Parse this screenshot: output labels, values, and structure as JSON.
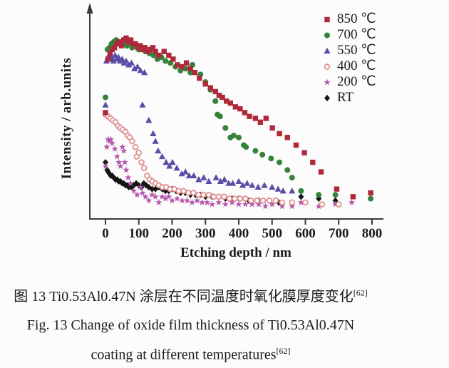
{
  "figure": {
    "caption_zh": "图 13  Ti0.53Al0.47N 涂层在不同温度时氧化膜厚度变化",
    "caption_zh_sup": "[62]",
    "caption_en_line1": "Fig. 13    Change of oxide film thickness of Ti0.53Al0.47N",
    "caption_en_line2": "coating at different temperatures",
    "caption_en_sup": "[62]"
  },
  "colors": {
    "axis": "#3a3a3a",
    "text": "#1b1b1b",
    "background": "#fcfcfc"
  },
  "chart_data": {
    "type": "scatter",
    "title": "",
    "xlabel": "Etching depth / nm",
    "ylabel": "Intensity / arb.units",
    "xlim": [
      0,
      800
    ],
    "x_ticks": [
      0,
      100,
      200,
      300,
      400,
      500,
      600,
      700,
      800
    ],
    "ylim": [
      0,
      100
    ],
    "y_scale_note": "y axis unlabeled (arbitrary units); values estimated on 0-100 scale",
    "grid": false,
    "legend_position": "top-right",
    "series": [
      {
        "name": "850 ℃",
        "marker": "square",
        "color": "#ae2a3a",
        "points": [
          [
            0,
            56
          ],
          [
            8,
            84
          ],
          [
            14,
            87
          ],
          [
            20,
            89
          ],
          [
            27,
            90
          ],
          [
            34,
            92
          ],
          [
            41,
            93
          ],
          [
            48,
            91
          ],
          [
            55,
            94
          ],
          [
            62,
            95
          ],
          [
            69,
            93
          ],
          [
            76,
            94
          ],
          [
            83,
            92
          ],
          [
            90,
            92
          ],
          [
            97,
            90
          ],
          [
            104,
            91
          ],
          [
            111,
            89
          ],
          [
            118,
            90
          ],
          [
            126,
            88
          ],
          [
            134,
            89
          ],
          [
            142,
            90
          ],
          [
            150,
            88
          ],
          [
            160,
            86
          ],
          [
            176,
            88
          ],
          [
            190,
            86
          ],
          [
            203,
            84
          ],
          [
            216,
            81
          ],
          [
            229,
            80
          ],
          [
            243,
            82
          ],
          [
            255,
            79
          ],
          [
            268,
            77
          ],
          [
            282,
            74
          ],
          [
            300,
            71
          ],
          [
            315,
            69
          ],
          [
            330,
            67
          ],
          [
            341,
            65
          ],
          [
            351,
            64
          ],
          [
            363,
            62
          ],
          [
            375,
            61
          ],
          [
            390,
            59
          ],
          [
            404,
            58
          ],
          [
            418,
            56
          ],
          [
            432,
            54
          ],
          [
            450,
            53
          ],
          [
            465,
            51
          ],
          [
            482,
            53
          ],
          [
            501,
            48
          ],
          [
            522,
            45
          ],
          [
            546,
            43
          ],
          [
            572,
            39
          ],
          [
            597,
            35
          ],
          [
            622,
            30
          ],
          [
            647,
            25
          ],
          [
            694,
            16
          ],
          [
            743,
            12
          ],
          [
            796,
            14
          ]
        ]
      },
      {
        "name": "700 ℃",
        "marker": "circle",
        "color": "#37823b",
        "points": [
          [
            0,
            64
          ],
          [
            6,
            89
          ],
          [
            12,
            90
          ],
          [
            18,
            92
          ],
          [
            25,
            93
          ],
          [
            32,
            94
          ],
          [
            40,
            93
          ],
          [
            48,
            92
          ],
          [
            56,
            93
          ],
          [
            64,
            91
          ],
          [
            72,
            92
          ],
          [
            80,
            90
          ],
          [
            90,
            91
          ],
          [
            100,
            89
          ],
          [
            110,
            90
          ],
          [
            120,
            88
          ],
          [
            132,
            87
          ],
          [
            144,
            86
          ],
          [
            156,
            84
          ],
          [
            168,
            85
          ],
          [
            180,
            83
          ],
          [
            195,
            82
          ],
          [
            210,
            80
          ],
          [
            225,
            78
          ],
          [
            240,
            79
          ],
          [
            255,
            77
          ],
          [
            261,
            81
          ],
          [
            285,
            76
          ],
          [
            300,
            72
          ],
          [
            315,
            68
          ],
          [
            330,
            62
          ],
          [
            336,
            55
          ],
          [
            344,
            54
          ],
          [
            360,
            48
          ],
          [
            375,
            43
          ],
          [
            385,
            44
          ],
          [
            400,
            43
          ],
          [
            415,
            39
          ],
          [
            422,
            38
          ],
          [
            450,
            36
          ],
          [
            471,
            34
          ],
          [
            497,
            32
          ],
          [
            522,
            30
          ],
          [
            546,
            26
          ],
          [
            560,
            22
          ],
          [
            587,
            15
          ],
          [
            640,
            13
          ],
          [
            690,
            13
          ],
          [
            796,
            11
          ]
        ]
      },
      {
        "name": "550 ℃",
        "marker": "triangle",
        "color": "#5a4da6",
        "points": [
          [
            0,
            60
          ],
          [
            3,
            83
          ],
          [
            7,
            85
          ],
          [
            11,
            86
          ],
          [
            15,
            84
          ],
          [
            19,
            85
          ],
          [
            24,
            83
          ],
          [
            29,
            86
          ],
          [
            34,
            84
          ],
          [
            39,
            85
          ],
          [
            44,
            83
          ],
          [
            50,
            84
          ],
          [
            56,
            82
          ],
          [
            62,
            83
          ],
          [
            70,
            81
          ],
          [
            78,
            82
          ],
          [
            87,
            79
          ],
          [
            96,
            80
          ],
          [
            105,
            78
          ],
          [
            111,
            60
          ],
          [
            117,
            77
          ],
          [
            130,
            52
          ],
          [
            143,
            45
          ],
          [
            150,
            41
          ],
          [
            158,
            36
          ],
          [
            170,
            33
          ],
          [
            182,
            30
          ],
          [
            192,
            28
          ],
          [
            201,
            30
          ],
          [
            214,
            27
          ],
          [
            229,
            24
          ],
          [
            240,
            25
          ],
          [
            251,
            23
          ],
          [
            265,
            23
          ],
          [
            280,
            21
          ],
          [
            295,
            22
          ],
          [
            310,
            20
          ],
          [
            332,
            22
          ],
          [
            345,
            20
          ],
          [
            357,
            21
          ],
          [
            370,
            19
          ],
          [
            382,
            19
          ],
          [
            400,
            20
          ],
          [
            412,
            18
          ],
          [
            425,
            19
          ],
          [
            440,
            18
          ],
          [
            458,
            17
          ],
          [
            477,
            18
          ],
          [
            500,
            17
          ],
          [
            518,
            16
          ],
          [
            533,
            15
          ],
          [
            560,
            15
          ]
        ]
      },
      {
        "name": "400 ℃",
        "marker": "circle-open",
        "color": "#dd8f8f",
        "points": [
          [
            0,
            55
          ],
          [
            8,
            54
          ],
          [
            15,
            53
          ],
          [
            22,
            52
          ],
          [
            30,
            51
          ],
          [
            38,
            49
          ],
          [
            45,
            48
          ],
          [
            52,
            47
          ],
          [
            60,
            46
          ],
          [
            67,
            44
          ],
          [
            73,
            43
          ],
          [
            80,
            41
          ],
          [
            90,
            38
          ],
          [
            94,
            33
          ],
          [
            100,
            35
          ],
          [
            108,
            30
          ],
          [
            116,
            27
          ],
          [
            125,
            23
          ],
          [
            133,
            21
          ],
          [
            141,
            20
          ],
          [
            150,
            19
          ],
          [
            160,
            18
          ],
          [
            171,
            17
          ],
          [
            182,
            17
          ],
          [
            194,
            16
          ],
          [
            207,
            16
          ],
          [
            220,
            15
          ],
          [
            234,
            15
          ],
          [
            249,
            14
          ],
          [
            264,
            14
          ],
          [
            279,
            13
          ],
          [
            294,
            13
          ],
          [
            310,
            13
          ],
          [
            325,
            12
          ],
          [
            340,
            12
          ],
          [
            356,
            12
          ],
          [
            372,
            11
          ],
          [
            388,
            11
          ],
          [
            404,
            11
          ],
          [
            420,
            11
          ],
          [
            437,
            10
          ],
          [
            455,
            10
          ],
          [
            473,
            10
          ],
          [
            492,
            10
          ],
          [
            511,
            10
          ],
          [
            530,
            9
          ],
          [
            560,
            9
          ],
          [
            600,
            9
          ],
          [
            650,
            8
          ],
          [
            700,
            8
          ]
        ]
      },
      {
        "name": "200 ℃",
        "marker": "star",
        "color": "#b657ad",
        "points": [
          [
            0,
            28
          ],
          [
            4,
            38
          ],
          [
            8,
            42
          ],
          [
            12,
            41
          ],
          [
            16,
            42
          ],
          [
            20,
            40
          ],
          [
            28,
            37
          ],
          [
            35,
            33
          ],
          [
            40,
            30
          ],
          [
            45,
            28
          ],
          [
            51,
            38
          ],
          [
            55,
            36
          ],
          [
            58,
            30
          ],
          [
            62,
            26
          ],
          [
            68,
            22
          ],
          [
            75,
            19
          ],
          [
            85,
            15
          ],
          [
            95,
            13
          ],
          [
            105,
            17
          ],
          [
            111,
            14
          ],
          [
            120,
            12
          ],
          [
            130,
            10
          ],
          [
            140,
            13
          ],
          [
            150,
            12
          ],
          [
            160,
            9
          ],
          [
            170,
            12
          ],
          [
            180,
            11
          ],
          [
            190,
            12
          ],
          [
            200,
            10
          ],
          [
            215,
            11
          ],
          [
            230,
            10
          ],
          [
            245,
            10
          ],
          [
            260,
            9
          ],
          [
            275,
            10
          ],
          [
            290,
            9
          ],
          [
            305,
            9
          ],
          [
            320,
            8
          ],
          [
            340,
            9
          ],
          [
            360,
            8
          ],
          [
            380,
            9
          ],
          [
            400,
            8
          ],
          [
            420,
            8
          ],
          [
            440,
            8
          ],
          [
            460,
            8
          ],
          [
            480,
            7
          ],
          [
            500,
            8
          ],
          [
            530,
            7
          ],
          [
            560,
            7
          ],
          [
            587,
            9
          ],
          [
            640,
            7
          ],
          [
            690,
            8
          ],
          [
            739,
            9
          ]
        ]
      },
      {
        "name": "RT",
        "marker": "diamond",
        "color": "#141414",
        "points": [
          [
            0,
            30
          ],
          [
            5,
            26
          ],
          [
            8,
            25
          ],
          [
            12,
            24
          ],
          [
            16,
            23
          ],
          [
            20,
            23
          ],
          [
            25,
            22
          ],
          [
            30,
            21
          ],
          [
            35,
            21
          ],
          [
            40,
            20
          ],
          [
            45,
            20
          ],
          [
            50,
            19
          ],
          [
            55,
            19
          ],
          [
            60,
            18
          ],
          [
            65,
            18
          ],
          [
            70,
            17
          ],
          [
            78,
            17
          ],
          [
            85,
            18
          ],
          [
            92,
            19
          ],
          [
            100,
            18
          ],
          [
            108,
            17
          ],
          [
            115,
            19
          ],
          [
            122,
            18
          ],
          [
            130,
            17
          ],
          [
            140,
            16
          ],
          [
            150,
            16
          ],
          [
            160,
            17
          ],
          [
            170,
            16
          ],
          [
            180,
            15
          ],
          [
            190,
            15
          ],
          [
            200,
            16
          ],
          [
            212,
            15
          ],
          [
            225,
            14
          ],
          [
            240,
            14
          ],
          [
            255,
            13
          ],
          [
            270,
            13
          ],
          [
            285,
            13
          ],
          [
            300,
            12
          ],
          [
            320,
            12
          ],
          [
            340,
            12
          ],
          [
            360,
            11
          ],
          [
            380,
            11
          ],
          [
            400,
            11
          ],
          [
            430,
            10
          ],
          [
            460,
            10
          ],
          [
            490,
            10
          ],
          [
            520,
            9
          ],
          [
            560,
            9
          ],
          [
            587,
            12
          ],
          [
            640,
            11
          ],
          [
            690,
            10
          ]
        ]
      }
    ]
  }
}
